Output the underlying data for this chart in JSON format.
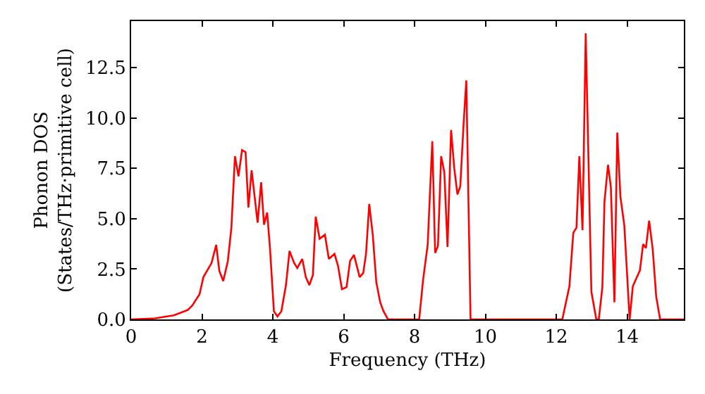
{
  "chart_data": {
    "type": "line",
    "xlabel": "Frequency (THz)",
    "ylabel": "Phonon DOS\n(States/THz·primitive cell)",
    "x": [
      0,
      0.67,
      1.2,
      1.6,
      1.73,
      1.93,
      2.04,
      2.27,
      2.4,
      2.49,
      2.6,
      2.73,
      2.83,
      2.93,
      3.03,
      3.13,
      3.23,
      3.31,
      3.4,
      3.57,
      3.67,
      3.75,
      3.84,
      3.92,
      4.03,
      4.13,
      4.24,
      4.37,
      4.47,
      4.6,
      4.69,
      4.83,
      4.93,
      5.03,
      5.13,
      5.21,
      5.32,
      5.47,
      5.58,
      5.74,
      5.84,
      5.95,
      6.08,
      6.18,
      6.29,
      6.45,
      6.55,
      6.63,
      6.72,
      6.82,
      6.92,
      7.03,
      7.12,
      7.25,
      8.13,
      8.24,
      8.37,
      8.5,
      8.58,
      8.66,
      8.75,
      8.84,
      8.93,
      9.03,
      9.12,
      9.21,
      9.29,
      9.38,
      9.46,
      9.58,
      12.17,
      12.37,
      12.48,
      12.57,
      12.65,
      12.74,
      12.83,
      12.99,
      13.13,
      13.2,
      13.3,
      13.36,
      13.46,
      13.54,
      13.64,
      13.72,
      13.81,
      13.92,
      14.07,
      14.16,
      14.36,
      14.45,
      14.53,
      14.62,
      14.72,
      14.82,
      14.93,
      15.6
    ],
    "series": [
      {
        "color": "#ff0000",
        "values": [
          0,
          0.05,
          0.2,
          0.47,
          0.7,
          1.25,
          2.1,
          2.8,
          3.7,
          2.4,
          1.9,
          2.9,
          4.55,
          8.1,
          7.1,
          8.4,
          8.3,
          5.55,
          7.4,
          4.8,
          6.8,
          4.7,
          5.3,
          3.5,
          0.4,
          0.15,
          0.4,
          1.7,
          3.4,
          2.8,
          2.55,
          3.0,
          2.1,
          1.7,
          2.2,
          5.1,
          4.0,
          4.2,
          3.0,
          3.25,
          2.65,
          1.5,
          1.6,
          2.9,
          3.2,
          2.1,
          2.3,
          3.25,
          5.73,
          4.2,
          1.84,
          0.85,
          0.42,
          0,
          0,
          1.96,
          3.7,
          8.84,
          3.3,
          3.65,
          8.1,
          7.3,
          3.6,
          9.4,
          7.5,
          6.2,
          6.6,
          9.6,
          11.86,
          0,
          0,
          1.65,
          4.3,
          4.55,
          8.1,
          4.43,
          14.2,
          1.37,
          0,
          0,
          1.6,
          5.85,
          7.67,
          6.56,
          0.85,
          9.27,
          6.08,
          4.67,
          0,
          1.65,
          2.43,
          3.73,
          3.54,
          4.9,
          3.5,
          1.13,
          0,
          0
        ]
      }
    ],
    "xlim": [
      0,
      15.6
    ],
    "ylim": [
      0,
      14.8
    ],
    "xticks": [
      0,
      2,
      4,
      6,
      8,
      10,
      12,
      14
    ],
    "yticks": [
      {
        "value": 0,
        "label": "0.0"
      },
      {
        "value": 2.5,
        "label": "2.5"
      },
      {
        "value": 5,
        "label": "5.0"
      },
      {
        "value": 7.5,
        "label": "7.5"
      },
      {
        "value": 10,
        "label": "10.0"
      },
      {
        "value": 12.5,
        "label": "12.5"
      }
    ],
    "marker": "none",
    "line_style": "solid"
  }
}
